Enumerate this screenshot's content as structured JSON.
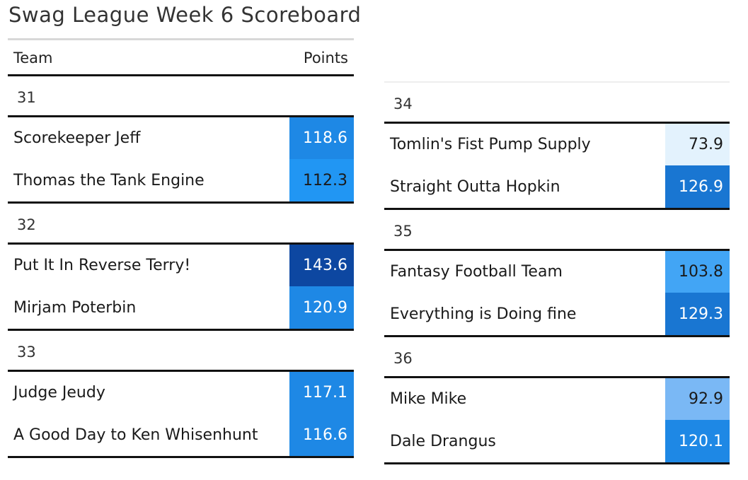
{
  "title": "Swag League Week 6 Scoreboard",
  "columns": {
    "team": "Team",
    "points": "Points"
  },
  "chart_data": {
    "type": "table",
    "title": "Swag League Week 6 Scoreboard",
    "columns": [
      "Team",
      "Points"
    ],
    "groups": [
      {
        "label": "31",
        "rows": [
          {
            "team": "Scorekeeper Jeff",
            "points": "118.6",
            "color": "#1e88e5",
            "text_color": "#ffffff"
          },
          {
            "team": "Thomas the Tank Engine",
            "points": "112.3",
            "color": "#2196f3",
            "text_color": "#1a1a1a"
          }
        ]
      },
      {
        "label": "32",
        "rows": [
          {
            "team": "Put It In Reverse Terry!",
            "points": "143.6",
            "color": "#0d47a1",
            "text_color": "#ffffff"
          },
          {
            "team": "Mirjam Poterbin",
            "points": "120.9",
            "color": "#1e88e5",
            "text_color": "#ffffff"
          }
        ]
      },
      {
        "label": "33",
        "rows": [
          {
            "team": "Judge Jeudy",
            "points": "117.1",
            "color": "#1e88e5",
            "text_color": "#ffffff"
          },
          {
            "team": "A Good Day to Ken Whisenhunt",
            "points": "116.6",
            "color": "#1e88e5",
            "text_color": "#ffffff"
          }
        ]
      },
      {
        "label": "34",
        "rows": [
          {
            "team": "Tomlin's Fist Pump Supply",
            "points": "73.9",
            "color": "#e3f2fd",
            "text_color": "#1a1a1a"
          },
          {
            "team": "Straight Outta Hopkin",
            "points": "126.9",
            "color": "#1976d2",
            "text_color": "#ffffff"
          }
        ]
      },
      {
        "label": "35",
        "rows": [
          {
            "team": "Fantasy Football Team",
            "points": "103.8",
            "color": "#42a5f5",
            "text_color": "#1a1a1a"
          },
          {
            "team": "Everything is Doing fine",
            "points": "129.3",
            "color": "#1976d2",
            "text_color": "#ffffff"
          }
        ]
      },
      {
        "label": "36",
        "rows": [
          {
            "team": "Mike Mike",
            "points": "92.9",
            "color": "#7ab8f5",
            "text_color": "#1a1a1a"
          },
          {
            "team": "Dale Drangus",
            "points": "120.1",
            "color": "#1e88e5",
            "text_color": "#ffffff"
          }
        ]
      }
    ]
  }
}
